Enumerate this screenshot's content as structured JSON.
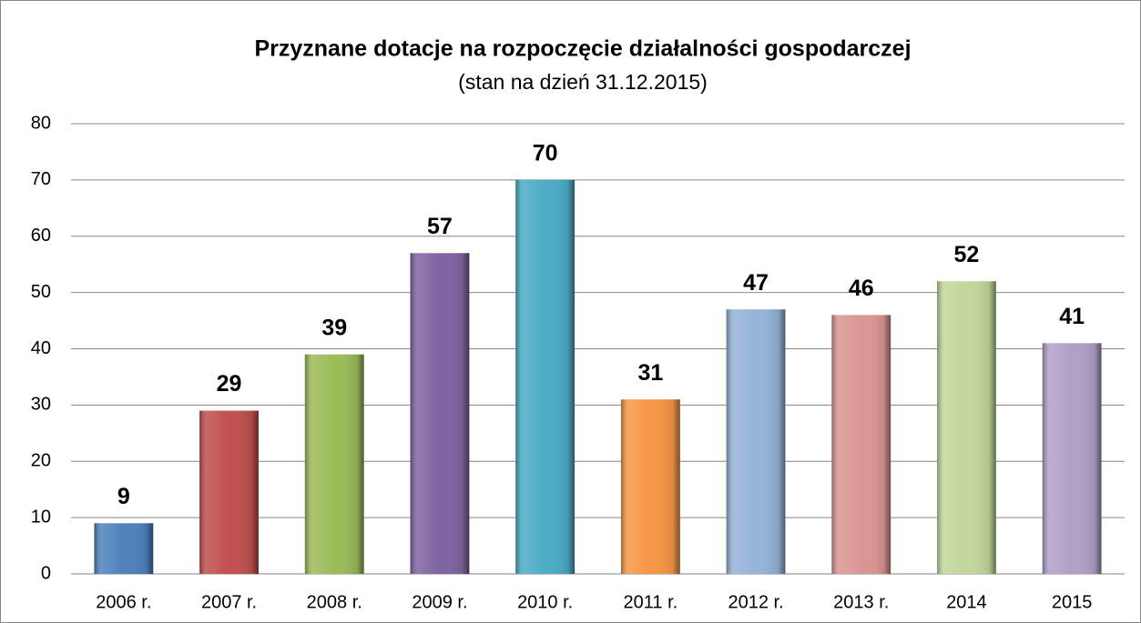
{
  "chart_data": {
    "type": "bar",
    "title": "Przyznane dotacje na rozpoczęcie działalności gospodarczej",
    "subtitle": "(stan na dzień 31.12.2015)",
    "categories": [
      "2006 r.",
      "2007 r.",
      "2008 r.",
      "2009 r.",
      "2010 r.",
      "2011 r.",
      "2012 r.",
      "2013 r.",
      "2014",
      "2015"
    ],
    "values": [
      9,
      29,
      39,
      57,
      70,
      31,
      47,
      46,
      52,
      41
    ],
    "colors": [
      "#4f81bd",
      "#c0504d",
      "#9bbb59",
      "#8064a2",
      "#4bacc6",
      "#f79646",
      "#95b3d7",
      "#da9694",
      "#c4d79b",
      "#b1a0c7"
    ],
    "ylim": [
      0,
      80
    ],
    "yticks": [
      0,
      10,
      20,
      30,
      40,
      50,
      60,
      70,
      80
    ],
    "grid": true
  }
}
